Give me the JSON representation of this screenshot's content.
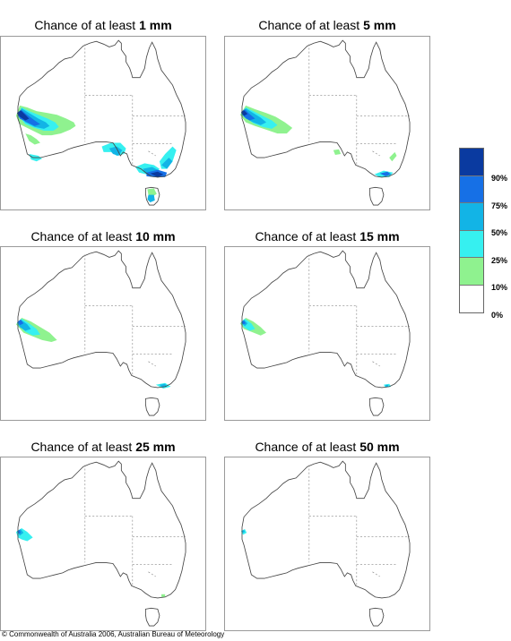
{
  "panels": [
    {
      "prefix": "Chance of at least ",
      "amount": "1 mm"
    },
    {
      "prefix": "Chance of at least ",
      "amount": "5 mm"
    },
    {
      "prefix": "Chance of at least ",
      "amount": "10 mm"
    },
    {
      "prefix": "Chance of at least ",
      "amount": "15 mm"
    },
    {
      "prefix": "Chance of at least ",
      "amount": "25 mm"
    },
    {
      "prefix": "Chance of at least ",
      "amount": "50 mm"
    }
  ],
  "legend": {
    "labels": [
      "90%",
      "75%",
      "50%",
      "25%",
      "10%",
      "0%"
    ],
    "colors": [
      "#0a3aa0",
      "#1670e6",
      "#12b4e6",
      "#36f0f0",
      "#8ff28f",
      "#ffffff"
    ]
  },
  "footer": "© Commonwealth of Australia 2006, Australian Bureau of Meteorology"
}
